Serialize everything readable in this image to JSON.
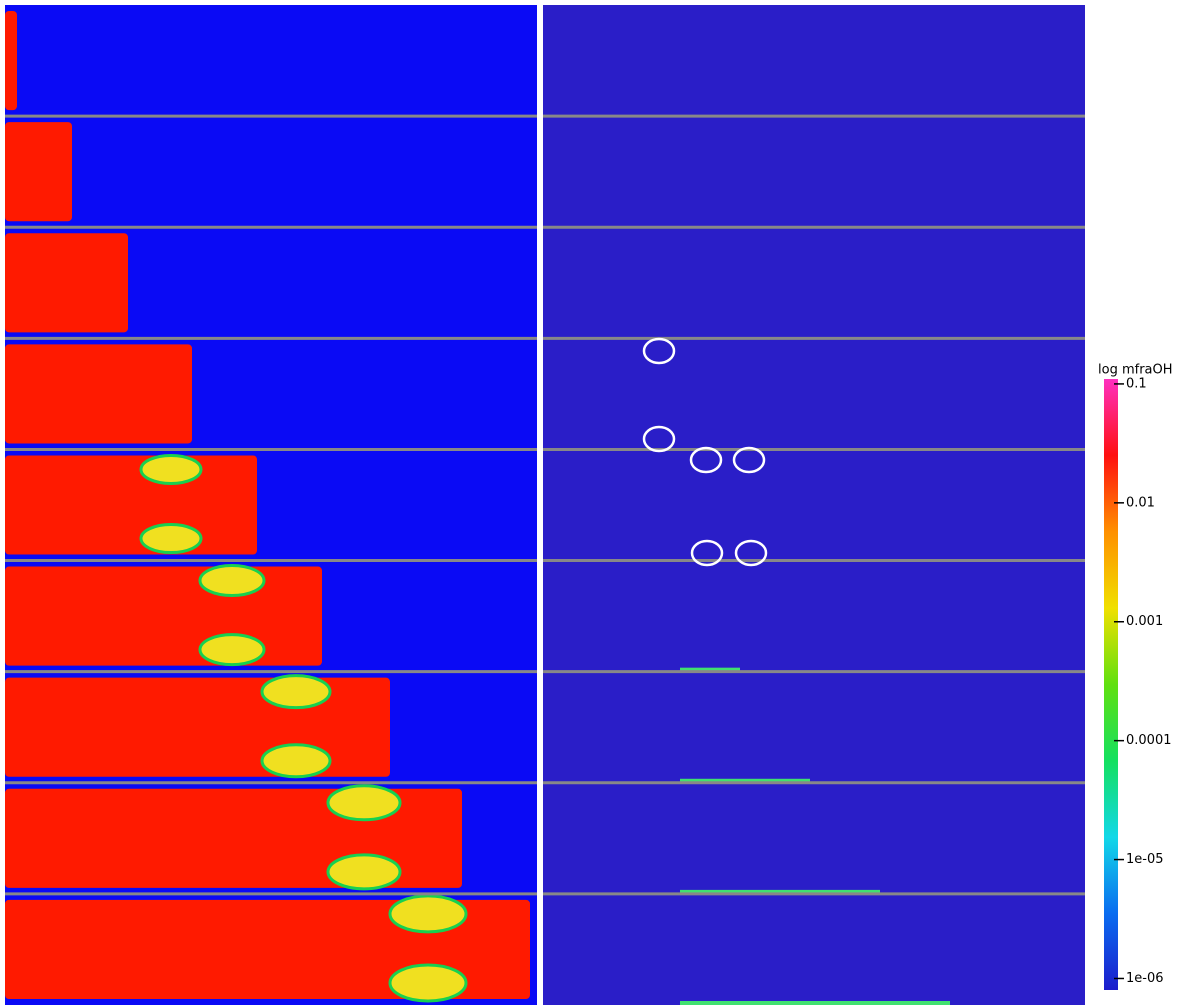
{
  "chart_data": {
    "type": "colorbar",
    "title": "log mfraOH",
    "log_scale": true,
    "clim": [
      8e-07,
      0.11
    ],
    "colors": [
      "#1c1ccc",
      "#0a6cf0",
      "#12d8e8",
      "#14e060",
      "#60e010",
      "#f0e000",
      "#ff9000",
      "#ff1010",
      "#ff30c0"
    ],
    "ticks": [
      0.1,
      0.01,
      0.001,
      0.0001,
      {
        "value": 1e-05,
        "label": "1e-05"
      },
      {
        "value": 1e-06,
        "label": "1e-06"
      }
    ]
  }
}
